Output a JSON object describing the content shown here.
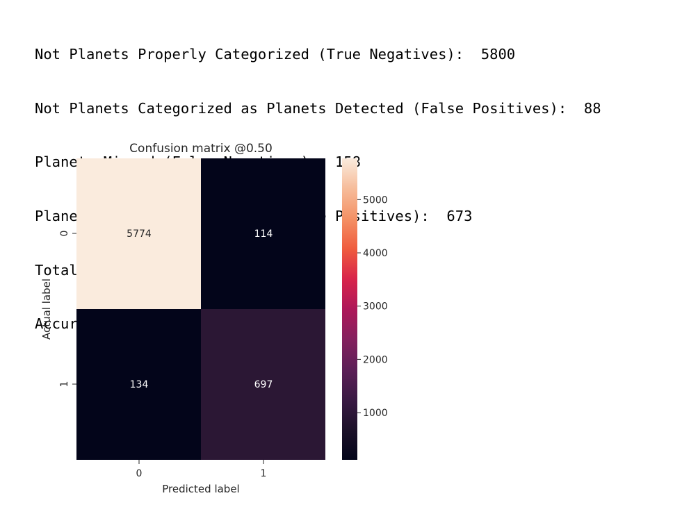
{
  "output_lines": [
    "Not Planets Properly Categorized (True Negatives):  5800",
    "Not Planets Categorized as Planets Detected (False Positives):  88",
    "Planets Missed (False Negatives):  158",
    "Planets Properly Categorized (True Positives):  673",
    "Total Planets:  831",
    "Accuracy:  0.9633874088406013"
  ],
  "chart_data": {
    "type": "heatmap",
    "title": "Confusion matrix @0.50",
    "xlabel": "Predicted label",
    "ylabel": "Actual label",
    "x_categories": [
      "0",
      "1"
    ],
    "y_categories": [
      "0",
      "1"
    ],
    "values": [
      [
        5774,
        114
      ],
      [
        134,
        697
      ]
    ],
    "value_labels": [
      [
        "5774",
        "114"
      ],
      [
        "134",
        "697"
      ]
    ],
    "colormap": "rocket",
    "colorbar": {
      "range": [
        114,
        5774
      ],
      "ticks": [
        1000,
        2000,
        3000,
        4000,
        5000
      ],
      "tick_labels": [
        "1000",
        "2000",
        "3000",
        "4000",
        "5000"
      ]
    },
    "colors": {
      "cell_0_0": "#faebdd",
      "cell_0_1": "#03051a",
      "cell_1_0": "#03051a",
      "cell_1_1": "#2b1734"
    }
  }
}
